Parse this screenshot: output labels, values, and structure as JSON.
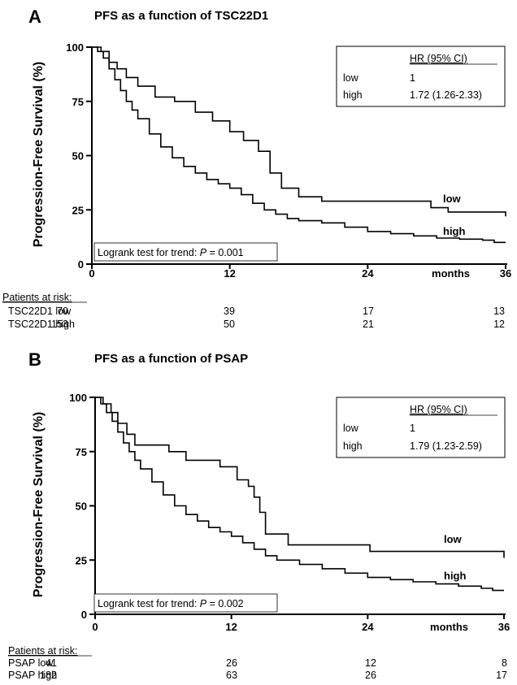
{
  "chart_data": [
    {
      "type": "line",
      "panel": "A",
      "title": "PFS as a function of TSC22D1",
      "ylabel": "Progression-Free Survival (%)",
      "xunit": "months",
      "xlim": [
        0,
        36
      ],
      "ylim": [
        0,
        100
      ],
      "xticks": [
        0,
        12,
        24,
        36
      ],
      "yticks": [
        0,
        25,
        50,
        75,
        100
      ],
      "series": [
        {
          "name": "low",
          "x": [
            0,
            0.8,
            1.5,
            2.2,
            3.0,
            4.0,
            5.5,
            7.2,
            9.0,
            10.5,
            12.0,
            13.2,
            14.5,
            15.5,
            16.5,
            18.0,
            20.0,
            24.0,
            28.0,
            29.5,
            31.0,
            35.5,
            36.0
          ],
          "y": [
            100,
            98,
            93,
            90,
            86,
            82,
            77,
            75,
            70,
            66,
            61,
            57,
            52,
            42,
            35,
            31,
            29,
            29,
            29,
            26,
            24,
            24,
            22
          ]
        },
        {
          "name": "high",
          "x": [
            0,
            0.5,
            1.0,
            1.5,
            2.0,
            2.5,
            3.0,
            3.5,
            4.0,
            5.0,
            6.0,
            7.0,
            8.0,
            9.0,
            10.0,
            11.0,
            12.0,
            13.0,
            14.0,
            15.0,
            16.0,
            17.0,
            18.0,
            20.0,
            22.0,
            24.0,
            26.0,
            28.0,
            30.0,
            32.0,
            34.0,
            35.0,
            36.0
          ],
          "y": [
            100,
            98,
            95,
            90,
            85,
            80,
            75,
            71,
            67,
            60,
            54,
            49,
            45,
            42,
            39,
            37,
            35,
            32,
            28,
            25,
            23,
            21,
            20,
            19,
            17,
            15,
            14,
            13,
            12,
            11.5,
            11,
            10,
            10
          ]
        }
      ],
      "hr_table": {
        "header": "HR (95% CI)",
        "rows": [
          {
            "group": "low",
            "hr": "1"
          },
          {
            "group": "high",
            "hr": "1.72 (1.26-2.33)"
          }
        ]
      },
      "logrank": {
        "prefix": "Logrank test for trend: ",
        "p_symbol": "P",
        "suffix": " = 0.001"
      },
      "risk_table": {
        "heading": "Patients at risk:",
        "rows": [
          {
            "label": "TSC22D1 low",
            "counts": [
              "70",
              "39",
              "17",
              "13"
            ]
          },
          {
            "label": "TSC22D1 high",
            "counts": [
              "153",
              "50",
              "21",
              "12"
            ]
          }
        ]
      }
    },
    {
      "type": "line",
      "panel": "B",
      "title": "PFS as a function of PSAP",
      "ylabel": "Progression-Free Survival (%)",
      "xunit": "months",
      "xlim": [
        0,
        36
      ],
      "ylim": [
        0,
        100
      ],
      "xticks": [
        0,
        12,
        24,
        36
      ],
      "yticks": [
        0,
        25,
        50,
        75,
        100
      ],
      "series": [
        {
          "name": "low",
          "x": [
            0,
            0.7,
            1.4,
            2.0,
            2.8,
            3.5,
            4.5,
            6.5,
            8.0,
            9.5,
            11.0,
            12.5,
            13.5,
            14.0,
            14.5,
            15.0,
            15.5,
            17.0,
            20.0,
            24.0,
            24.2,
            28.0,
            32.0,
            35.5,
            36.0
          ],
          "y": [
            100,
            97,
            93,
            88,
            83,
            78,
            78,
            75,
            71,
            71,
            68,
            62,
            59,
            54,
            47,
            37,
            37,
            32,
            32,
            32,
            29,
            29,
            29,
            29,
            26
          ]
        },
        {
          "name": "high",
          "x": [
            0,
            0.5,
            1.0,
            1.5,
            2.0,
            2.5,
            3.0,
            3.5,
            4.0,
            5.0,
            6.0,
            7.0,
            8.0,
            9.0,
            10.0,
            11.0,
            12.0,
            13.0,
            14.0,
            15.0,
            16.0,
            18.0,
            20.0,
            22.0,
            24.0,
            26.0,
            28.0,
            30.0,
            32.0,
            34.0,
            35.0,
            36.0
          ],
          "y": [
            100,
            97,
            93,
            89,
            84,
            79,
            75,
            71,
            67,
            61,
            55,
            50,
            46,
            43,
            40,
            38,
            36,
            33,
            30,
            27,
            25,
            23,
            21,
            19,
            17,
            16,
            15,
            14,
            13,
            12,
            11,
            11
          ]
        }
      ],
      "hr_table": {
        "header": "HR (95% CI)",
        "rows": [
          {
            "group": "low",
            "hr": "1"
          },
          {
            "group": "high",
            "hr": "1.79 (1.23-2.59)"
          }
        ]
      },
      "logrank": {
        "prefix": "Logrank test for trend: ",
        "p_symbol": "P",
        "suffix": " = 0.002"
      },
      "risk_table": {
        "heading": "Patients at risk:",
        "rows": [
          {
            "label": "PSAP low",
            "counts": [
              "41",
              "26",
              "12",
              "8"
            ]
          },
          {
            "label": "PSAP high",
            "counts": [
              "182",
              "63",
              "26",
              "17"
            ]
          }
        ]
      }
    }
  ]
}
